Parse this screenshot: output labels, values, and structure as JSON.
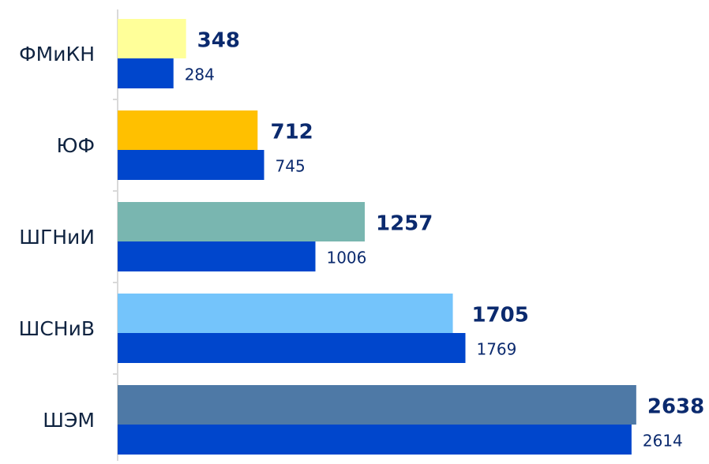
{
  "chart_data": {
    "type": "bar",
    "orientation": "horizontal",
    "categories": [
      "ФМиКН",
      "ЮФ",
      "ШГНиИ",
      "ШСНиВ",
      "ШЭМ"
    ],
    "series": [
      {
        "colors": [
          "#ffff99",
          "#ffc000",
          "#79b6b0",
          "#74c4fb",
          "#4e79a6"
        ],
        "values": [
          348,
          712,
          1257,
          1705,
          2638
        ]
      },
      {
        "color": "#0046cc",
        "values": [
          284,
          745,
          1006,
          1769,
          2614
        ]
      }
    ],
    "xlim": [
      0,
      3000
    ]
  }
}
